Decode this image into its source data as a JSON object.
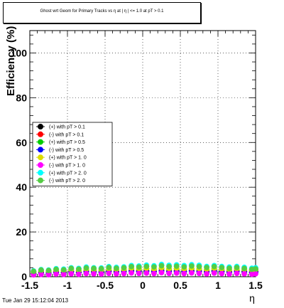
{
  "chart_data": {
    "type": "scatter",
    "title": "Ghost wrt Geom for Primary Tracks vs   η at |   η | <= 1.0 at pT > 0.1",
    "xlabel": "η",
    "ylabel": "Efficiency (%)",
    "xlim": [
      -1.5,
      1.5
    ],
    "ylim": [
      0,
      110
    ],
    "x_ticks": [
      "-1.5",
      "-1",
      "-0.5",
      "0",
      "0.5",
      "1",
      "1.5"
    ],
    "y_ticks": [
      "0",
      "20",
      "40",
      "60",
      "80",
      "100"
    ],
    "x_tick_values": [
      -1.5,
      -1,
      -0.5,
      0,
      0.5,
      1,
      1.5
    ],
    "y_tick_values": [
      0,
      20,
      40,
      60,
      80,
      100
    ],
    "grid": true,
    "legend_position": "left-middle",
    "series": [
      {
        "name": "(+) with pT > 0.1",
        "color": "#000000",
        "values": [
          1.5,
          2.0,
          1.8,
          2.2,
          2.0,
          2.4,
          2.1,
          2.5,
          2.3,
          2.2,
          2.6,
          2.4,
          2.5,
          2.8,
          2.6,
          2.7,
          2.5,
          2.9,
          2.6,
          2.7,
          2.5,
          2.8,
          2.6,
          2.4,
          2.7,
          2.5,
          2.3,
          2.6,
          2.4,
          2.2,
          2.4
        ]
      },
      {
        "name": "(-) with pT > 0.1",
        "color": "#ff0000",
        "values": [
          1.4,
          1.9,
          1.7,
          2.1,
          1.9,
          2.3,
          2.0,
          2.4,
          2.2,
          2.1,
          2.5,
          2.3,
          2.4,
          2.7,
          2.5,
          2.6,
          2.4,
          2.8,
          2.5,
          2.6,
          2.4,
          2.7,
          2.5,
          2.3,
          2.6,
          2.4,
          2.2,
          2.5,
          2.3,
          2.1,
          2.3
        ]
      },
      {
        "name": "(+) with pT > 0.5",
        "color": "#00cc00",
        "values": [
          2.0,
          2.5,
          2.3,
          2.8,
          2.6,
          3.0,
          2.7,
          3.2,
          3.0,
          2.9,
          3.3,
          3.1,
          3.2,
          3.6,
          3.4,
          3.5,
          3.3,
          3.7,
          3.4,
          3.5,
          3.3,
          3.6,
          3.4,
          3.1,
          3.5,
          3.2,
          3.0,
          3.3,
          3.1,
          2.8,
          3.0
        ]
      },
      {
        "name": "(-) with pT > 0.5",
        "color": "#0000ff",
        "values": [
          1.2,
          1.6,
          1.5,
          1.8,
          1.7,
          2.0,
          1.8,
          2.1,
          2.0,
          1.9,
          2.2,
          2.0,
          2.1,
          2.4,
          2.2,
          2.3,
          2.1,
          2.5,
          2.2,
          2.3,
          2.1,
          2.4,
          2.2,
          2.0,
          2.3,
          2.1,
          1.9,
          2.2,
          2.0,
          1.8,
          2.0
        ]
      },
      {
        "name": "(+) with pT > 1. 0",
        "color": "#dddd00",
        "values": [
          2.2,
          2.7,
          2.5,
          3.0,
          2.8,
          3.2,
          2.9,
          3.4,
          3.2,
          3.1,
          3.5,
          3.3,
          3.4,
          3.8,
          3.6,
          3.7,
          3.5,
          3.9,
          3.6,
          3.7,
          3.5,
          3.8,
          3.6,
          3.3,
          3.7,
          3.4,
          3.2,
          3.5,
          3.3,
          3.0,
          3.2
        ]
      },
      {
        "name": "(-) with pT > 1. 0",
        "color": "#ff00ff",
        "values": [
          0.8,
          1.0,
          0.9,
          1.2,
          1.0,
          1.3,
          1.1,
          1.4,
          1.3,
          1.2,
          1.5,
          1.3,
          1.4,
          1.7,
          1.5,
          1.6,
          1.4,
          1.8,
          1.5,
          1.6,
          1.4,
          1.7,
          1.5,
          1.3,
          1.6,
          1.4,
          1.2,
          1.5,
          1.3,
          1.1,
          1.3
        ]
      },
      {
        "name": "(+) with pT > 2. 0",
        "color": "#00ffff",
        "values": [
          2.6,
          3.2,
          3.0,
          3.6,
          3.4,
          4.0,
          3.7,
          4.3,
          4.0,
          3.9,
          4.5,
          4.2,
          4.4,
          5.0,
          4.8,
          5.2,
          4.9,
          5.5,
          5.1,
          5.3,
          5.0,
          5.4,
          5.1,
          4.6,
          5.0,
          4.6,
          4.3,
          4.6,
          4.2,
          3.8,
          4.0
        ]
      },
      {
        "name": "(-) with pT > 2. 0",
        "color": "#55cc44",
        "values": [
          2.4,
          3.0,
          2.8,
          3.3,
          3.1,
          3.7,
          3.4,
          3.9,
          3.7,
          3.6,
          4.1,
          3.8,
          4.0,
          4.5,
          4.3,
          4.6,
          4.4,
          4.9,
          4.5,
          4.7,
          4.4,
          4.8,
          4.5,
          4.1,
          4.5,
          4.1,
          3.8,
          4.1,
          3.7,
          3.3,
          3.5
        ]
      }
    ],
    "x": [
      -1.45,
      -1.35,
      -1.25,
      -1.15,
      -1.05,
      -0.95,
      -0.85,
      -0.75,
      -0.65,
      -0.55,
      -0.45,
      -0.35,
      -0.25,
      -0.15,
      -0.05,
      0.05,
      0.15,
      0.25,
      0.35,
      0.45,
      0.55,
      0.65,
      0.75,
      0.85,
      0.95,
      1.05,
      1.15,
      1.25,
      1.35,
      1.45,
      1.5
    ]
  },
  "footer": {
    "timestamp": "Tue Jan 29 15:12:04 2013"
  }
}
